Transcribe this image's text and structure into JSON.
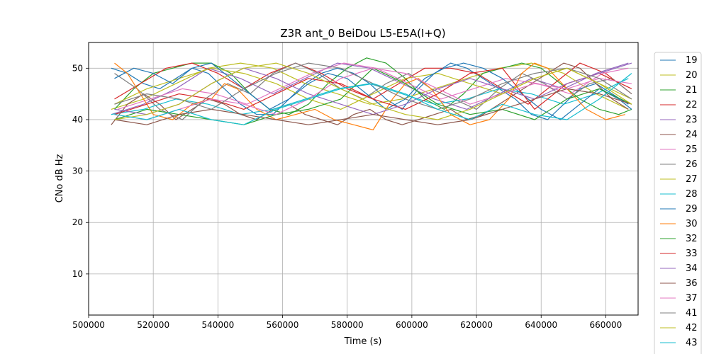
{
  "chart_data": {
    "type": "line",
    "title": "Z3R ant_0 BeiDou L5-E5A(I+Q)",
    "xlabel": "Time (s)",
    "ylabel": "CNo dB Hz",
    "xlim": [
      500000,
      670000
    ],
    "ylim": [
      2,
      55
    ],
    "xticks": [
      500000,
      520000,
      540000,
      560000,
      580000,
      600000,
      620000,
      640000,
      660000
    ],
    "xtick_labels": [
      "500000",
      "520000",
      "540000",
      "560000",
      "580000",
      "600000",
      "620000",
      "640000",
      "660000"
    ],
    "yticks": [
      10,
      20,
      30,
      40,
      50
    ],
    "ytick_labels": [
      "10",
      "20",
      "30",
      "40",
      "50"
    ],
    "grid": true,
    "legend_position": "right, outside plot",
    "series": [
      {
        "name": "19",
        "color": "#1f77b4",
        "x": [
          507000,
          512000,
          517000,
          522000,
          527000,
          532000,
          537000,
          542000,
          547000,
          552000,
          557000,
          562000,
          567000,
          572000,
          577000,
          582000,
          587000,
          592000,
          597000,
          602000,
          607000,
          612000,
          617000,
          622000,
          627000,
          632000,
          637000,
          642000,
          647000,
          652000,
          657000,
          662000,
          667000
        ],
        "y": [
          50,
          49,
          47,
          46,
          48,
          50,
          49,
          46,
          43,
          41,
          41,
          44,
          47,
          49,
          50,
          49,
          47,
          44,
          42,
          46,
          49,
          51,
          50,
          48,
          46,
          44,
          41,
          40,
          43,
          46,
          47,
          45,
          43
        ]
      },
      {
        "name": "20",
        "color": "#bcbd22",
        "x": [
          507000,
          517000,
          527000,
          537000,
          547000,
          557000,
          567000,
          577000,
          587000,
          597000,
          607000,
          617000,
          627000,
          637000,
          647000,
          657000,
          667000
        ],
        "y": [
          42,
          44,
          47,
          50,
          51,
          50,
          47,
          45,
          43,
          44,
          46,
          48,
          50,
          51,
          49,
          45,
          42
        ]
      },
      {
        "name": "21",
        "color": "#2ca02c",
        "x": [
          508000,
          514000,
          520000,
          526000,
          532000,
          538000,
          544000,
          550000,
          556000,
          562000,
          568000,
          574000,
          580000,
          586000,
          592000,
          598000,
          604000,
          610000,
          616000,
          622000,
          628000,
          634000,
          640000,
          646000,
          652000,
          658000,
          664000,
          668000
        ],
        "y": [
          42,
          46,
          49,
          50,
          51,
          51,
          49,
          45,
          42,
          41,
          43,
          47,
          50,
          52,
          51,
          48,
          44,
          42,
          45,
          49,
          50,
          51,
          50,
          47,
          44,
          42,
          41,
          42
        ]
      },
      {
        "name": "22",
        "color": "#d62728",
        "x": [
          508000,
          516000,
          524000,
          532000,
          540000,
          548000,
          556000,
          564000,
          572000,
          580000,
          588000,
          596000,
          604000,
          612000,
          620000,
          628000,
          636000,
          644000,
          652000,
          660000,
          668000
        ],
        "y": [
          44,
          47,
          50,
          51,
          49,
          46,
          49,
          51,
          49,
          46,
          44,
          47,
          50,
          50,
          49,
          46,
          43,
          47,
          51,
          49,
          45
        ]
      },
      {
        "name": "23",
        "color": "#9467bd",
        "x": [
          507000,
          517000,
          527000,
          537000,
          547000,
          557000,
          567000,
          577000,
          587000,
          597000,
          607000,
          617000,
          627000,
          637000,
          647000,
          657000,
          667000
        ],
        "y": [
          41,
          43,
          46,
          50,
          48,
          45,
          48,
          51,
          50,
          47,
          44,
          42,
          45,
          48,
          46,
          49,
          51
        ]
      },
      {
        "name": "24",
        "color": "#8c564b",
        "x": [
          507000,
          512000,
          517000,
          522000,
          527000,
          532000,
          537000,
          542000,
          547000,
          552000,
          557000,
          562000,
          567000,
          572000,
          577000,
          582000,
          587000,
          592000,
          597000,
          602000,
          607000,
          612000,
          617000,
          622000,
          627000,
          632000,
          637000,
          642000,
          647000,
          652000,
          657000,
          662000,
          667000
        ],
        "y": [
          39,
          43,
          45,
          43,
          40,
          42,
          44,
          43,
          41,
          40,
          42,
          43,
          41,
          40,
          39,
          41,
          42,
          40,
          39,
          40,
          41,
          42,
          40,
          41,
          43,
          45,
          47,
          49,
          51,
          50,
          47,
          44,
          42
        ]
      },
      {
        "name": "25",
        "color": "#e377c2",
        "x": [
          509000,
          519000,
          529000,
          539000,
          549000,
          559000,
          569000,
          579000,
          589000,
          599000,
          609000,
          619000,
          629000,
          639000,
          649000,
          659000,
          667000
        ],
        "y": [
          42,
          44,
          46,
          45,
          43,
          46,
          49,
          51,
          50,
          47,
          44,
          46,
          48,
          47,
          45,
          49,
          50
        ]
      },
      {
        "name": "26",
        "color": "#7f7f7f",
        "x": [
          508000,
          515000,
          522000,
          529000,
          536000,
          543000,
          550000,
          557000,
          564000,
          571000,
          578000,
          585000,
          592000,
          599000,
          606000,
          613000,
          620000,
          627000,
          634000,
          641000,
          648000,
          655000,
          662000,
          668000
        ],
        "y": [
          49,
          46,
          42,
          40,
          44,
          47,
          45,
          49,
          51,
          49,
          46,
          44,
          47,
          49,
          46,
          44,
          42,
          46,
          49,
          47,
          44,
          47,
          48,
          45
        ]
      },
      {
        "name": "27",
        "color": "#bcbd22",
        "x": [
          508000,
          518000,
          528000,
          538000,
          548000,
          558000,
          568000,
          578000,
          588000,
          598000,
          608000,
          618000,
          628000,
          638000,
          648000,
          658000,
          668000
        ],
        "y": [
          43,
          46,
          48,
          50,
          49,
          47,
          44,
          42,
          45,
          48,
          49,
          47,
          45,
          48,
          50,
          47,
          44
        ]
      },
      {
        "name": "28",
        "color": "#17becf",
        "x": [
          507000,
          517000,
          527000,
          537000,
          547000,
          557000,
          567000,
          577000,
          587000,
          597000,
          607000,
          617000,
          627000,
          637000,
          647000,
          657000,
          667000
        ],
        "y": [
          41,
          42,
          44,
          43,
          41,
          42,
          44,
          46,
          47,
          45,
          43,
          44,
          46,
          45,
          43,
          45,
          48
        ]
      },
      {
        "name": "29",
        "color": "#1f77b4",
        "x": [
          508000,
          514000,
          520000,
          526000,
          532000,
          538000,
          544000,
          550000,
          556000,
          562000,
          568000,
          574000,
          580000,
          586000,
          592000,
          598000,
          604000,
          610000,
          616000,
          622000,
          628000,
          634000,
          640000,
          646000,
          652000,
          658000,
          664000,
          668000
        ],
        "y": [
          48,
          50,
          49,
          47,
          50,
          51,
          48,
          45,
          42,
          44,
          47,
          49,
          48,
          45,
          42,
          44,
          48,
          50,
          51,
          50,
          48,
          45,
          42,
          40,
          43,
          46,
          44,
          42
        ]
      },
      {
        "name": "30",
        "color": "#ff7f0e",
        "x": [
          508000,
          512000,
          516000,
          520000,
          526000,
          532000,
          538000,
          542000,
          546000,
          552000,
          558000,
          564000,
          570000,
          576000,
          582000,
          588000,
          594000,
          598000,
          602000,
          606000,
          612000,
          618000,
          624000,
          630000,
          634000,
          638000,
          642000,
          648000,
          654000,
          660000,
          666000
        ],
        "y": [
          51,
          49,
          45,
          41,
          40,
          43,
          44,
          47,
          46,
          42,
          40,
          41,
          42,
          40,
          39,
          38,
          44,
          47,
          48,
          46,
          41,
          39,
          40,
          44,
          49,
          51,
          50,
          46,
          42,
          40,
          41
        ]
      },
      {
        "name": "32",
        "color": "#2ca02c",
        "x": [
          508000,
          518000,
          528000,
          538000,
          548000,
          558000,
          568000,
          578000,
          588000,
          598000,
          608000,
          618000,
          628000,
          638000,
          648000,
          658000,
          668000
        ],
        "y": [
          40,
          42,
          41,
          40,
          39,
          41,
          42,
          44,
          50,
          47,
          43,
          41,
          42,
          40,
          44,
          46,
          43
        ]
      },
      {
        "name": "33",
        "color": "#d62728",
        "x": [
          508000,
          518000,
          528000,
          538000,
          548000,
          558000,
          568000,
          578000,
          588000,
          598000,
          608000,
          618000,
          628000,
          638000,
          648000,
          658000,
          668000
        ],
        "y": [
          41,
          43,
          45,
          44,
          42,
          45,
          48,
          47,
          44,
          42,
          45,
          49,
          50,
          42,
          47,
          49,
          46
        ]
      },
      {
        "name": "34",
        "color": "#9467bd",
        "x": [
          508000,
          518000,
          528000,
          538000,
          548000,
          558000,
          568000,
          578000,
          588000,
          598000,
          608000,
          618000,
          628000,
          638000,
          648000,
          658000,
          668000
        ],
        "y": [
          42,
          41,
          43,
          47,
          50,
          48,
          45,
          43,
          41,
          43,
          46,
          48,
          46,
          44,
          47,
          49,
          51
        ]
      },
      {
        "name": "36",
        "color": "#8c564b",
        "x": [
          508000,
          518000,
          528000,
          538000,
          548000,
          558000,
          568000,
          578000,
          588000,
          598000,
          608000,
          618000,
          628000,
          638000,
          648000,
          658000,
          668000
        ],
        "y": [
          40,
          39,
          41,
          42,
          41,
          40,
          39,
          40,
          41,
          40,
          39,
          40,
          42,
          44,
          46,
          45,
          43
        ]
      },
      {
        "name": "37",
        "color": "#e377c2",
        "x": [
          508000,
          518000,
          528000,
          538000,
          548000,
          558000,
          568000,
          578000,
          588000,
          598000,
          608000,
          618000,
          628000,
          638000,
          648000,
          658000,
          668000
        ],
        "y": [
          41,
          40,
          42,
          44,
          43,
          41,
          44,
          48,
          50,
          49,
          46,
          43,
          45,
          47,
          46,
          48,
          47
        ]
      },
      {
        "name": "41",
        "color": "#7f7f7f",
        "x": [
          508000,
          518000,
          528000,
          538000,
          548000,
          558000,
          568000,
          578000,
          588000,
          598000,
          608000,
          618000,
          628000,
          638000,
          648000,
          658000,
          668000
        ],
        "y": [
          43,
          45,
          44,
          42,
          46,
          49,
          51,
          50,
          47,
          44,
          42,
          44,
          47,
          49,
          50,
          48,
          44
        ]
      },
      {
        "name": "42",
        "color": "#bcbd22",
        "x": [
          508000,
          518000,
          528000,
          538000,
          548000,
          558000,
          568000,
          578000,
          588000,
          598000,
          608000,
          618000,
          628000,
          638000,
          648000,
          658000,
          668000
        ],
        "y": [
          40,
          41,
          43,
          47,
          50,
          51,
          49,
          46,
          43,
          41,
          40,
          42,
          45,
          48,
          50,
          47,
          43
        ]
      },
      {
        "name": "43",
        "color": "#17becf",
        "x": [
          508000,
          518000,
          528000,
          538000,
          548000,
          558000,
          568000,
          578000,
          588000,
          598000,
          608000,
          618000,
          628000,
          638000,
          648000,
          658000,
          668000
        ],
        "y": [
          41,
          40,
          42,
          40,
          39,
          42,
          44,
          46,
          47,
          45,
          42,
          40,
          43,
          41,
          40,
          44,
          49
        ]
      }
    ]
  }
}
